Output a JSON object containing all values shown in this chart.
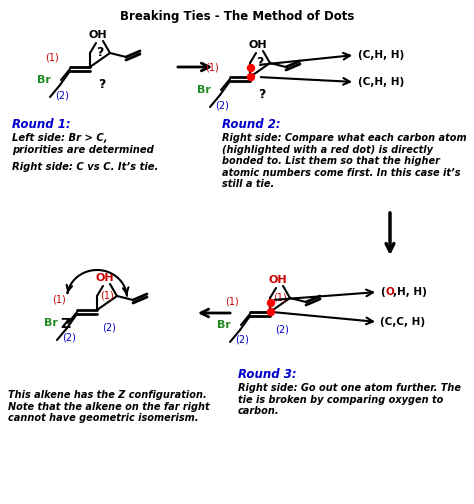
{
  "title": "Breaking Ties - The Method of Dots",
  "bg_color": "#ffffff",
  "text_color": "#000000",
  "red_color": "#cc0000",
  "green_color": "#228B22",
  "blue_color": "#0000cc",
  "round1_label": "Round 1:",
  "round1_left": "Left side: Br > C,\npriorities are determined",
  "round1_right": "Right side: C vs C. It’s tie.",
  "round2_label": "Round 2:",
  "round2_text": "Right side: Compare what each carbon atom\n(highlighted with a red dot) is directly\nbonded to. List them so that the higher\natomic numbers come first. In this case it’s\nstill a tie.",
  "round3_label": "Round 3:",
  "round3_text": "Right side: Go out one atom further. The\ntie is broken by comparing oxygen to\ncarbon.",
  "bottom_left_text": "This alkene has the Z configuration.\nNote that the alkene on the far right\ncannot have geometric isomerism.",
  "arrow_color": "#000000"
}
